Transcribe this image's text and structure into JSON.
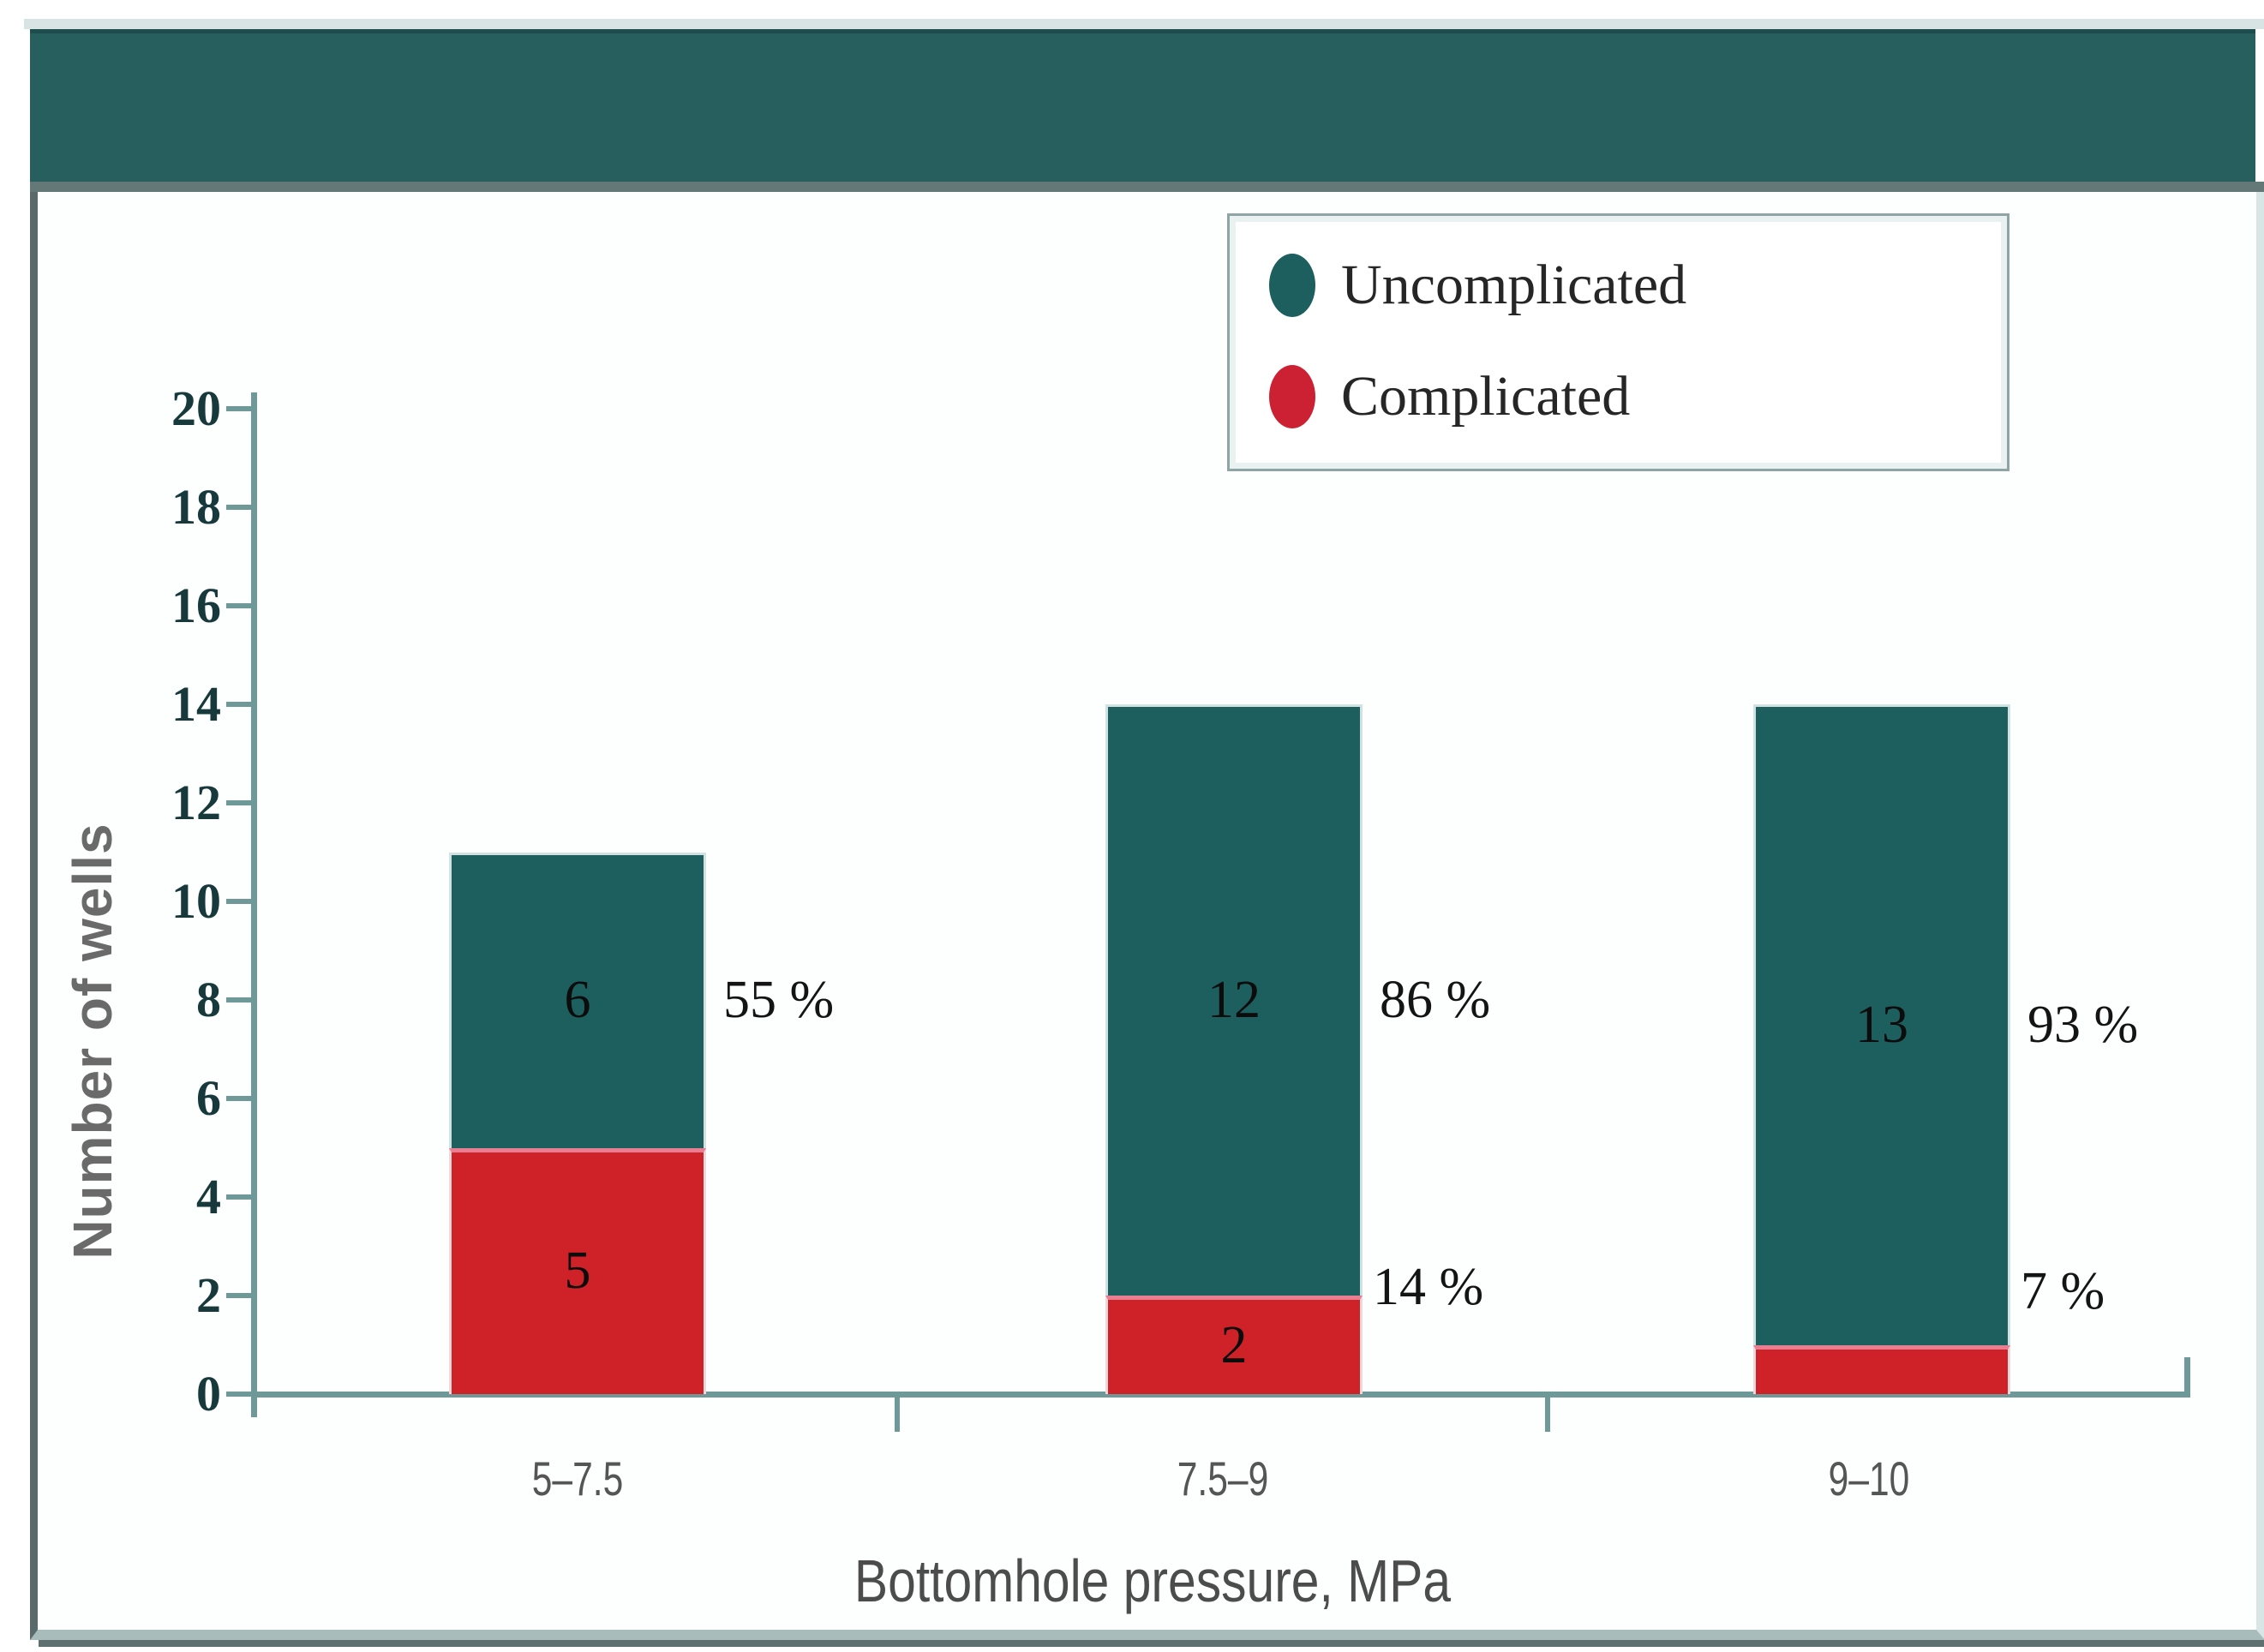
{
  "colors": {
    "uncomplicated": "#1d5f5e",
    "complicated": "#cf2128",
    "header_band": "#265f5e",
    "axis": "#6f9898"
  },
  "legend": {
    "items": [
      {
        "label": "Uncomplicated",
        "color": "#1d5f5e"
      },
      {
        "label": "Complicated",
        "color": "#cc2132"
      }
    ]
  },
  "y_axis": {
    "label": "Number of wells",
    "ticks": [
      "20",
      "18",
      "16",
      "14",
      "12",
      "10",
      "8",
      "6",
      "4",
      "2",
      "0"
    ]
  },
  "x_axis": {
    "label": "Bottomhole pressure, MPa",
    "categories": [
      "5–7.5",
      "7.5–9",
      "9–10"
    ]
  },
  "chart_data": {
    "type": "bar",
    "stacked": true,
    "title": "",
    "categories": [
      "5–7.5",
      "7.5–9",
      "9–10"
    ],
    "series": [
      {
        "name": "Uncomplicated",
        "values": [
          6,
          12,
          13
        ],
        "value_labels": [
          "6",
          "12",
          "13"
        ],
        "percent_labels": [
          "55 %",
          "86 %",
          "93 %"
        ]
      },
      {
        "name": "Complicated",
        "values": [
          5,
          2,
          1
        ],
        "value_labels": [
          "5",
          "2",
          ""
        ],
        "percent_labels": [
          "",
          "14 %",
          "7 %"
        ]
      }
    ],
    "xlabel": "Bottomhole pressure, MPa",
    "ylabel": "Number of wells",
    "ylim": [
      0,
      20
    ],
    "ytick_step": 2,
    "grid": false,
    "legend_position": "top-right"
  }
}
